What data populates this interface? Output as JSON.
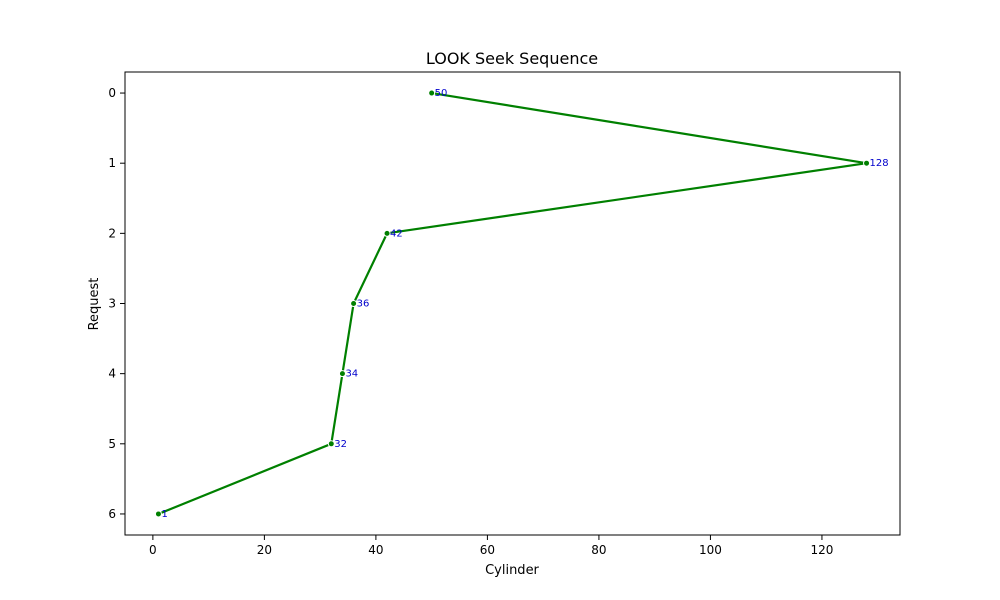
{
  "chart_data": {
    "type": "line",
    "title": "LOOK Seek Sequence",
    "xlabel": "Cylinder",
    "ylabel": "Request",
    "xlim": [
      -5,
      134
    ],
    "ylim": [
      6.3,
      -0.3
    ],
    "xticks": [
      0,
      20,
      40,
      60,
      80,
      100,
      120
    ],
    "yticks": [
      0,
      1,
      2,
      3,
      4,
      5,
      6
    ],
    "grid": false,
    "series": [
      {
        "x": [
          50,
          128,
          42,
          36,
          34,
          32,
          1
        ],
        "y": [
          0,
          1,
          2,
          3,
          4,
          5,
          6
        ],
        "point_labels": [
          "50",
          "128",
          "42",
          "36",
          "34",
          "32",
          "1"
        ],
        "color": "#008000",
        "label_color": "#0000cc"
      }
    ]
  }
}
